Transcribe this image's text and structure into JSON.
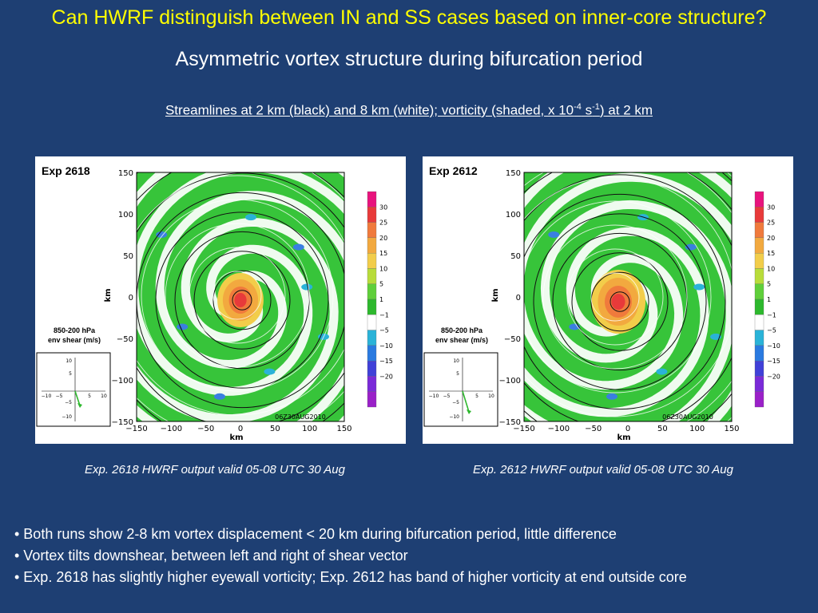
{
  "slide": {
    "title": "Can HWRF distinguish between IN and SS cases based on inner-core structure?",
    "subtitle": "Asymmetric vortex structure during bifurcation period",
    "caption_prefix": "Streamlines at 2 km (black) and 8 km (white); vorticity (shaded, x 10",
    "caption_exp1": "-4",
    "caption_mid": " s",
    "caption_exp2": "-1",
    "caption_suffix": ") at 2 km"
  },
  "panels": [
    {
      "label": "Exp 2618",
      "shear_label_line1": "850-200 hPa",
      "shear_label_line2": "env shear (m/s)",
      "axis_label": "km",
      "date_stamp": "06Z30AUG2010",
      "figure_caption": "Exp. 2618 HWRF output valid 05-08 UTC 30 Aug"
    },
    {
      "label": "Exp 2612",
      "shear_label_line1": "850-200 hPa",
      "shear_label_line2": "env shear (m/s)",
      "axis_label": "km",
      "date_stamp": "06Z30AUG2010",
      "figure_caption": "Exp. 2612 HWRF output valid 05-08 UTC 30 Aug"
    }
  ],
  "axis_ticks": [
    "150",
    "100",
    "50",
    "0",
    "−50",
    "−100",
    "−150"
  ],
  "x_ticks": [
    "−150",
    "−100",
    "−50",
    "0",
    "50",
    "100",
    "150"
  ],
  "shear_ticks": {
    "y": [
      "10",
      "5",
      "−5",
      "−10"
    ],
    "x": [
      "−10",
      "−5",
      "5",
      "10"
    ]
  },
  "colorbar": {
    "labels": [
      "30",
      "25",
      "20",
      "15",
      "10",
      "5",
      "1",
      "−1",
      "−5",
      "−10",
      "−15",
      "−20"
    ],
    "colors": [
      "#e8137d",
      "#e83a3a",
      "#f07a3c",
      "#f2a93f",
      "#f2cd4a",
      "#b8dc3a",
      "#5fcf3a",
      "#2db82d",
      "#ffffff",
      "#2ab3d8",
      "#2a7ae0",
      "#4040d8",
      "#7a2ad8",
      "#9a20c8"
    ]
  },
  "bullets": [
    "• Both runs show 2-8 km vortex displacement < 20 km during bifurcation period, little difference",
    "• Vortex tilts downshear, between left and right of shear vector",
    "• Exp. 2618 has slightly higher eyewall vorticity; Exp. 2612 has band of higher vorticity at end outside core"
  ]
}
